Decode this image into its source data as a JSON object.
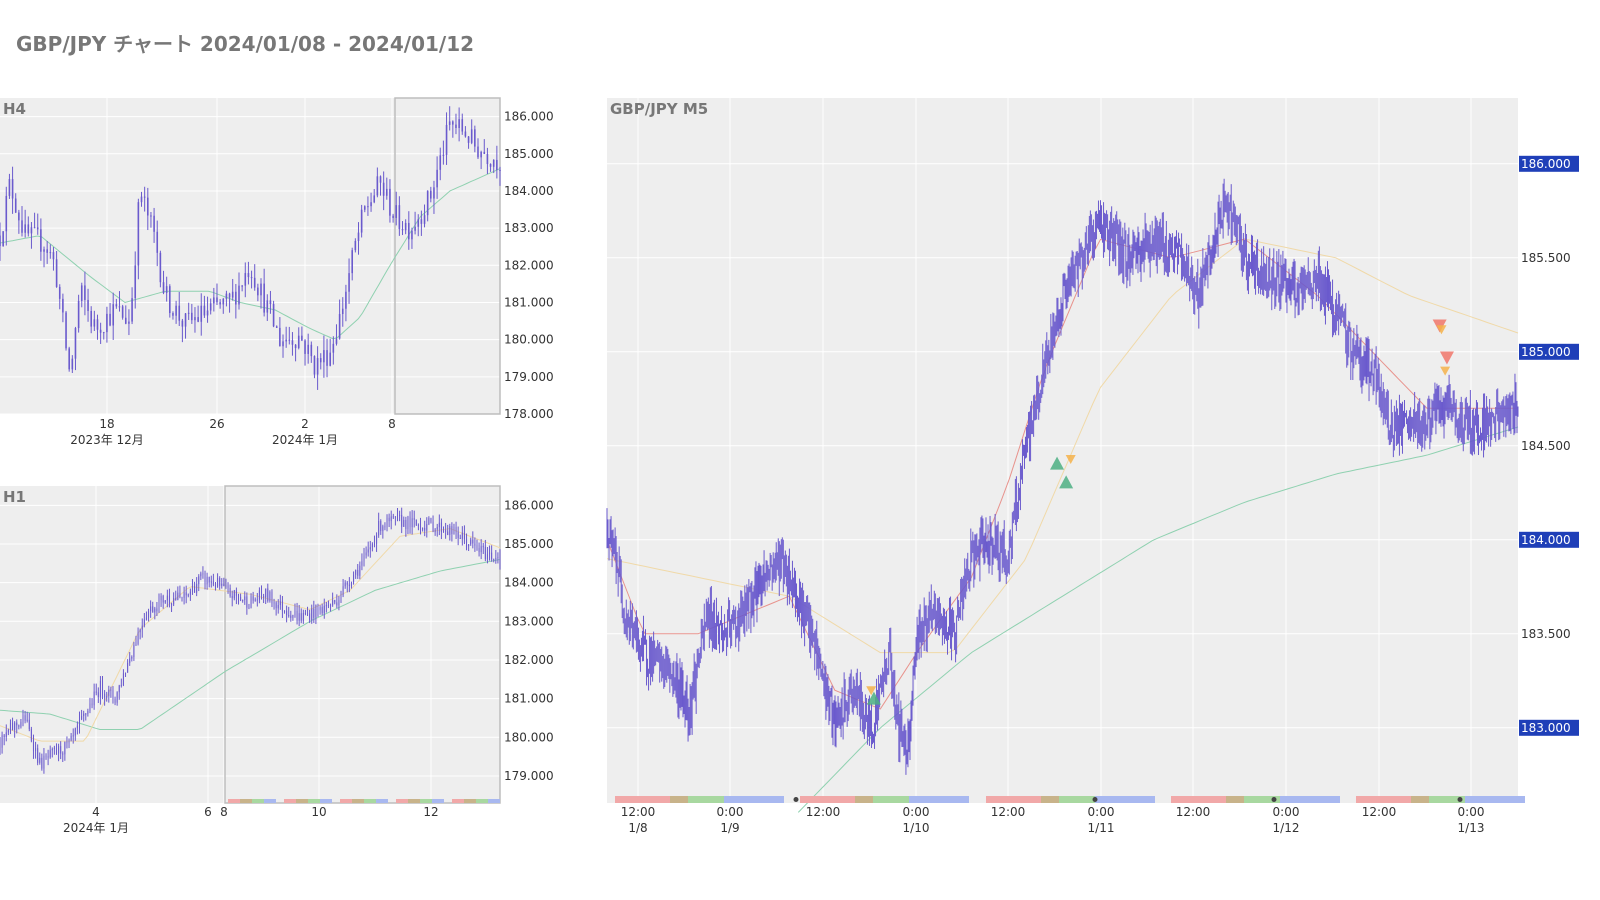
{
  "page": {
    "title": "GBP/JPY チャート 2024/01/08 - 2024/01/12"
  },
  "colors": {
    "background": "#ffffff",
    "plot_background": "#eeeeee",
    "grid": "#ffffff",
    "candle": "#6a5acd",
    "ma_short": "#e8938d",
    "ma_mid": "#f0d9a8",
    "ma_long": "#8fd1b0",
    "highlight_label_bg": "#1f3fb8",
    "highlight_label_text": "#ffffff",
    "session_colors": [
      "#f1a8a8",
      "#c8b38a",
      "#a8d8a0",
      "#a8b8f0"
    ],
    "buy_marker": "#4caf82",
    "sell_marker": "#f0766a",
    "exit_marker": "#f5b14a"
  },
  "chart_data": [
    {
      "id": "h4",
      "type": "candlestick",
      "title": "H4",
      "y_ticks": [
        "186.000",
        "185.000",
        "184.000",
        "183.000",
        "182.000",
        "181.000",
        "180.000",
        "179.000",
        "178.000"
      ],
      "ylim": [
        178.0,
        186.5
      ],
      "x_ticks": [
        "18",
        "26",
        "2",
        "8"
      ],
      "x_sublabels": [
        "2023年 12月",
        "2024年 1月"
      ],
      "shape": [
        [
          0,
          182.8
        ],
        [
          2,
          184.2
        ],
        [
          5,
          182.8
        ],
        [
          9,
          182.6
        ],
        [
          11,
          182.0
        ],
        [
          13,
          180.0
        ],
        [
          14,
          179.0
        ],
        [
          16,
          181.3
        ],
        [
          19,
          180.3
        ],
        [
          23,
          180.8
        ],
        [
          26,
          180.5
        ],
        [
          28,
          184.0
        ],
        [
          31,
          182.7
        ],
        [
          33,
          181.2
        ],
        [
          37,
          180.4
        ],
        [
          42,
          180.8
        ],
        [
          46,
          181.0
        ],
        [
          50,
          182.0
        ],
        [
          53,
          181.0
        ],
        [
          56,
          180.0
        ],
        [
          60,
          180.1
        ],
        [
          63,
          179.3
        ],
        [
          66,
          179.7
        ],
        [
          68,
          180.6
        ],
        [
          71,
          182.5
        ],
        [
          73,
          183.5
        ],
        [
          76,
          184.2
        ],
        [
          79,
          183.3
        ],
        [
          82,
          183.0
        ],
        [
          86,
          183.8
        ],
        [
          90,
          185.8
        ],
        [
          93,
          185.6
        ],
        [
          95,
          185.2
        ],
        [
          100,
          184.8
        ]
      ],
      "ma_shape": [
        [
          0,
          182.6
        ],
        [
          8,
          182.8
        ],
        [
          18,
          181.7
        ],
        [
          25,
          181.0
        ],
        [
          33,
          181.3
        ],
        [
          42,
          181.3
        ],
        [
          48,
          181.0
        ],
        [
          55,
          180.8
        ],
        [
          62,
          180.3
        ],
        [
          67,
          180.0
        ],
        [
          72,
          180.6
        ],
        [
          78,
          182.0
        ],
        [
          84,
          183.3
        ],
        [
          90,
          184.0
        ],
        [
          100,
          184.6
        ]
      ],
      "highlight_range": [
        79,
        100
      ]
    },
    {
      "id": "h1",
      "type": "candlestick",
      "title": "H1",
      "y_ticks": [
        "186.000",
        "185.000",
        "184.000",
        "183.000",
        "182.000",
        "181.000",
        "180.000",
        "179.000"
      ],
      "ylim": [
        178.3,
        186.5
      ],
      "x_ticks": [
        "4",
        "6",
        "8",
        "10",
        "12"
      ],
      "x_sublabels": [
        "2024年 1月"
      ],
      "shape": [
        [
          0,
          179.8
        ],
        [
          2,
          180.2
        ],
        [
          5,
          180.5
        ],
        [
          8,
          179.3
        ],
        [
          11,
          179.6
        ],
        [
          14,
          179.8
        ],
        [
          17,
          180.6
        ],
        [
          20,
          181.3
        ],
        [
          23,
          181.0
        ],
        [
          26,
          182.1
        ],
        [
          29,
          183.2
        ],
        [
          33,
          183.6
        ],
        [
          37,
          183.6
        ],
        [
          40,
          184.1
        ],
        [
          43,
          184.0
        ],
        [
          46,
          183.7
        ],
        [
          50,
          183.5
        ],
        [
          53,
          183.7
        ],
        [
          56,
          183.4
        ],
        [
          60,
          183.1
        ],
        [
          64,
          183.3
        ],
        [
          67,
          183.5
        ],
        [
          70,
          184.1
        ],
        [
          73,
          184.6
        ],
        [
          76,
          185.5
        ],
        [
          80,
          185.6
        ],
        [
          83,
          185.5
        ],
        [
          86,
          185.5
        ],
        [
          89,
          185.4
        ],
        [
          92,
          185.2
        ],
        [
          95,
          184.9
        ],
        [
          98,
          184.7
        ],
        [
          100,
          184.7
        ]
      ],
      "ma_mid_shape": [
        [
          0,
          180.3
        ],
        [
          8,
          179.9
        ],
        [
          17,
          179.9
        ],
        [
          28,
          182.8
        ],
        [
          38,
          183.9
        ],
        [
          50,
          183.7
        ],
        [
          62,
          183.3
        ],
        [
          70,
          183.8
        ],
        [
          80,
          185.2
        ],
        [
          90,
          185.4
        ],
        [
          100,
          184.9
        ]
      ],
      "ma_long_shape": [
        [
          0,
          180.7
        ],
        [
          10,
          180.6
        ],
        [
          20,
          180.2
        ],
        [
          28,
          180.2
        ],
        [
          45,
          181.7
        ],
        [
          62,
          183.0
        ],
        [
          75,
          183.8
        ],
        [
          88,
          184.3
        ],
        [
          100,
          184.6
        ]
      ],
      "highlight_range": [
        45,
        100
      ]
    },
    {
      "id": "m5",
      "type": "candlestick",
      "title": "GBP/JPY M5",
      "y_ticks": [
        "186.000",
        "185.500",
        "185.000",
        "184.500",
        "184.000",
        "183.500",
        "183.000"
      ],
      "highlighted_y_ticks": [
        "186.000",
        "185.000",
        "184.000",
        "183.000"
      ],
      "ylim": [
        182.6,
        186.35
      ],
      "x_ticks": [
        "12:00",
        "0:00",
        "12:00",
        "0:00",
        "12:00",
        "0:00",
        "12:00",
        "0:00",
        "12:00",
        "0:00"
      ],
      "x_sublabels": [
        "1/8",
        "1/9",
        "1/10",
        "1/11",
        "1/12",
        "1/13"
      ],
      "shape": [
        [
          0,
          184.0
        ],
        [
          1,
          183.9
        ],
        [
          2,
          183.6
        ],
        [
          4,
          183.4
        ],
        [
          7,
          183.3
        ],
        [
          9,
          183.1
        ],
        [
          11,
          183.6
        ],
        [
          13,
          183.5
        ],
        [
          15,
          183.6
        ],
        [
          17,
          183.8
        ],
        [
          19,
          183.9
        ],
        [
          21,
          183.7
        ],
        [
          23,
          183.4
        ],
        [
          25,
          183.0
        ],
        [
          27,
          183.2
        ],
        [
          29,
          183.0
        ],
        [
          31,
          183.4
        ],
        [
          32,
          183.0
        ],
        [
          33,
          182.9
        ],
        [
          34,
          183.5
        ],
        [
          36,
          183.6
        ],
        [
          38,
          183.5
        ],
        [
          40,
          183.9
        ],
        [
          42,
          184.0
        ],
        [
          44,
          183.9
        ],
        [
          46,
          184.5
        ],
        [
          48,
          184.9
        ],
        [
          50,
          185.3
        ],
        [
          52,
          185.5
        ],
        [
          54,
          185.7
        ],
        [
          57,
          185.5
        ],
        [
          60,
          185.6
        ],
        [
          63,
          185.5
        ],
        [
          65,
          185.3
        ],
        [
          68,
          185.8
        ],
        [
          70,
          185.5
        ],
        [
          72,
          185.4
        ],
        [
          74,
          185.4
        ],
        [
          76,
          185.3
        ],
        [
          78,
          185.4
        ],
        [
          80,
          185.2
        ],
        [
          82,
          185.0
        ],
        [
          84,
          184.9
        ],
        [
          86,
          184.6
        ],
        [
          89,
          184.6
        ],
        [
          92,
          184.7
        ],
        [
          95,
          184.6
        ],
        [
          100,
          184.7
        ]
      ],
      "ma_short_shape": [
        [
          0,
          184.0
        ],
        [
          4,
          183.5
        ],
        [
          10,
          183.5
        ],
        [
          20,
          183.7
        ],
        [
          25,
          183.2
        ],
        [
          30,
          183.1
        ],
        [
          34,
          183.4
        ],
        [
          40,
          183.8
        ],
        [
          44,
          184.3
        ],
        [
          48,
          184.9
        ],
        [
          54,
          185.6
        ],
        [
          62,
          185.5
        ],
        [
          70,
          185.6
        ],
        [
          78,
          185.3
        ],
        [
          84,
          185.0
        ],
        [
          90,
          184.7
        ],
        [
          100,
          184.7
        ]
      ],
      "ma_mid_shape": [
        [
          0,
          183.9
        ],
        [
          10,
          183.8
        ],
        [
          20,
          183.7
        ],
        [
          30,
          183.4
        ],
        [
          38,
          183.4
        ],
        [
          46,
          183.9
        ],
        [
          54,
          184.8
        ],
        [
          62,
          185.3
        ],
        [
          70,
          185.6
        ],
        [
          80,
          185.5
        ],
        [
          88,
          185.3
        ],
        [
          100,
          185.1
        ]
      ],
      "ma_long_shape": [
        [
          21,
          182.55
        ],
        [
          30,
          183.0
        ],
        [
          40,
          183.4
        ],
        [
          50,
          183.7
        ],
        [
          60,
          184.0
        ],
        [
          70,
          184.2
        ],
        [
          80,
          184.35
        ],
        [
          90,
          184.45
        ],
        [
          100,
          184.6
        ]
      ],
      "markers": [
        {
          "type": "buy",
          "x": 29.3,
          "y": 183.15
        },
        {
          "type": "exit",
          "x": 29.0,
          "y": 183.2
        },
        {
          "type": "buy",
          "x": 49.4,
          "y": 184.4
        },
        {
          "type": "buy",
          "x": 50.4,
          "y": 184.3
        },
        {
          "type": "exit",
          "x": 50.9,
          "y": 184.43
        },
        {
          "type": "sell",
          "x": 91.4,
          "y": 185.14
        },
        {
          "type": "exit",
          "x": 91.6,
          "y": 185.12
        },
        {
          "type": "sell",
          "x": 92.2,
          "y": 184.97
        },
        {
          "type": "exit",
          "x": 92.0,
          "y": 184.9
        }
      ]
    }
  ]
}
